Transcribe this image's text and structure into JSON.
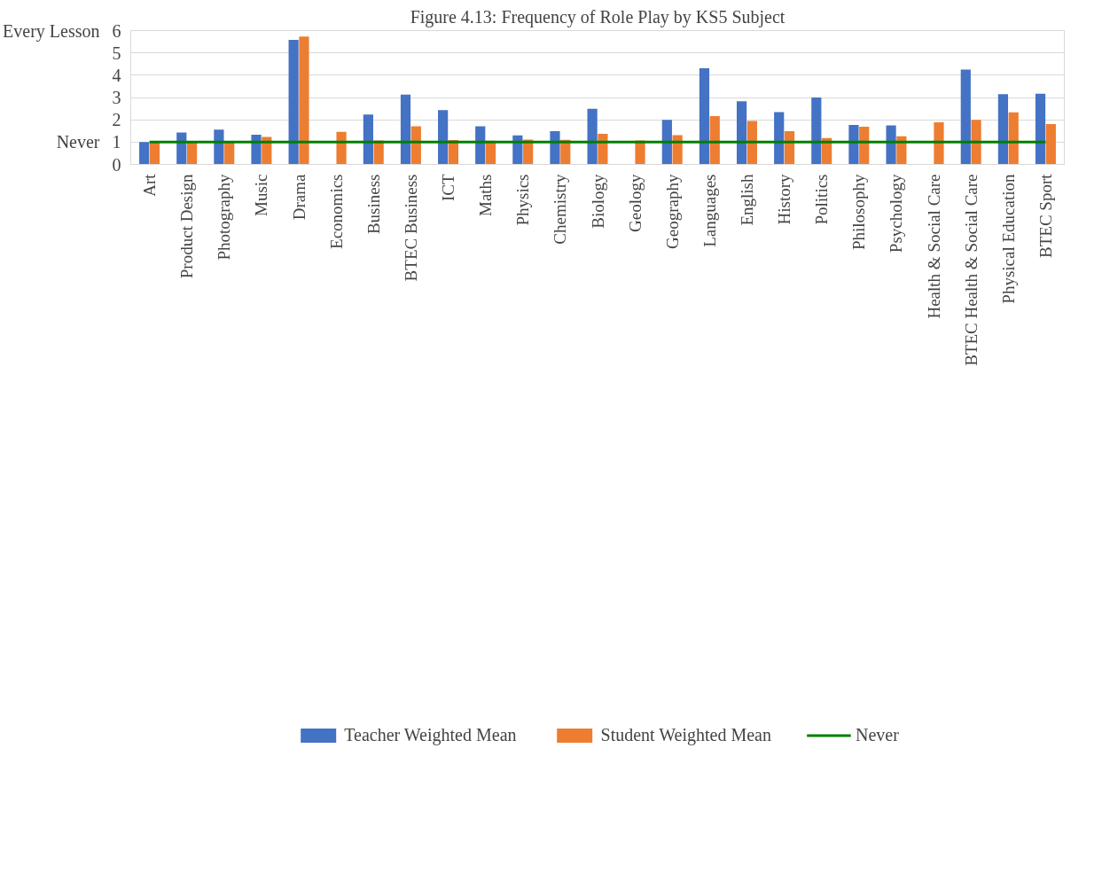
{
  "chart_data": {
    "type": "bar",
    "title": "Figure 4.13: Frequency of Role Play by KS5 Subject",
    "categories": [
      "Art",
      "Product Design",
      "Photography",
      "Music",
      "Drama",
      "Economics",
      "Business",
      "BTEC Business",
      "ICT",
      "Maths",
      "Physics",
      "Chemistry",
      "Biology",
      "Geology",
      "Geography",
      "Languages",
      "English",
      "History",
      "Politics",
      "Philosophy",
      "Psychology",
      "Health & Social Care",
      "BTEC Health & Social Care",
      "Physical Education",
      "BTEC Sport"
    ],
    "series": [
      {
        "name": "Teacher Weighted Mean",
        "color": "#4472c4",
        "values": [
          1.0,
          1.43,
          1.56,
          1.33,
          5.58,
          null,
          2.24,
          3.13,
          2.43,
          1.71,
          1.3,
          1.49,
          2.49,
          null,
          2.0,
          4.31,
          2.83,
          2.34,
          3.0,
          1.77,
          1.75,
          null,
          4.25,
          3.15,
          3.17
        ]
      },
      {
        "name": "Student Weighted Mean",
        "color": "#ed7d31",
        "values": [
          1.0,
          1.05,
          1.0,
          1.23,
          5.73,
          1.46,
          1.07,
          1.71,
          1.09,
          1.06,
          1.11,
          1.1,
          1.37,
          1.07,
          1.31,
          2.17,
          1.95,
          1.49,
          1.18,
          1.69,
          1.26,
          1.89,
          2.0,
          2.33,
          1.81
        ]
      },
      {
        "name": "Never",
        "type": "line",
        "color": "#008000",
        "values": [
          1,
          1,
          1,
          1,
          1,
          1,
          1,
          1,
          1,
          1,
          1,
          1,
          1,
          1,
          1,
          1,
          1,
          1,
          1,
          1,
          1,
          1,
          1,
          1,
          1
        ]
      }
    ],
    "ylim": [
      0,
      6
    ],
    "yticks": [
      0,
      1,
      2,
      3,
      4,
      5,
      6
    ],
    "grid": "y",
    "legend": "bottom",
    "marker": "none",
    "annotations": [
      "Every Lesson",
      "Never"
    ]
  }
}
